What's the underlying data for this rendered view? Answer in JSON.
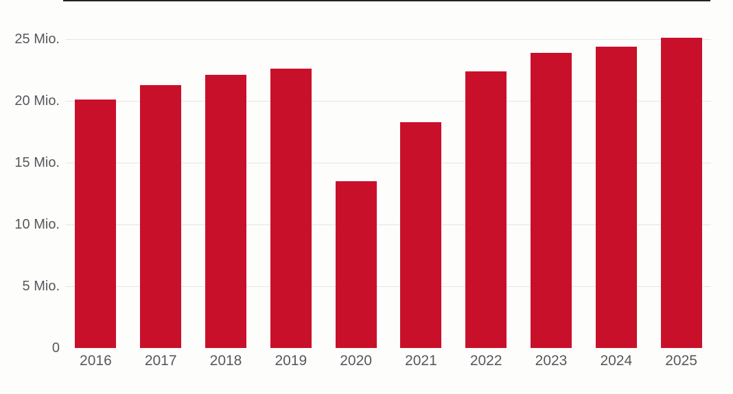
{
  "chart_data": {
    "type": "bar",
    "title": "",
    "xlabel": "",
    "ylabel": "",
    "unit": "Mio.",
    "categories": [
      "2016",
      "2017",
      "2018",
      "2019",
      "2020",
      "2021",
      "2022",
      "2023",
      "2024",
      "2025"
    ],
    "values": [
      20.1,
      21.3,
      22.1,
      22.6,
      13.5,
      18.3,
      22.4,
      23.9,
      24.4,
      25.1
    ],
    "yticks": [
      {
        "value": 25,
        "label": "25 Mio."
      },
      {
        "value": 20,
        "label": "20 Mio."
      },
      {
        "value": 15,
        "label": "15 Mio."
      },
      {
        "value": 10,
        "label": "10 Mio."
      },
      {
        "value": 5,
        "label": "5 Mio."
      },
      {
        "value": 0,
        "label": "0"
      }
    ],
    "ylim": [
      0,
      28.2
    ],
    "grid": true,
    "legend": false,
    "colors": {
      "bar": "#C9102B",
      "axis_line": "#232323",
      "gridline": "#E5E5E3",
      "tick_label": "#55585C",
      "background": "#FDFDFB"
    }
  }
}
